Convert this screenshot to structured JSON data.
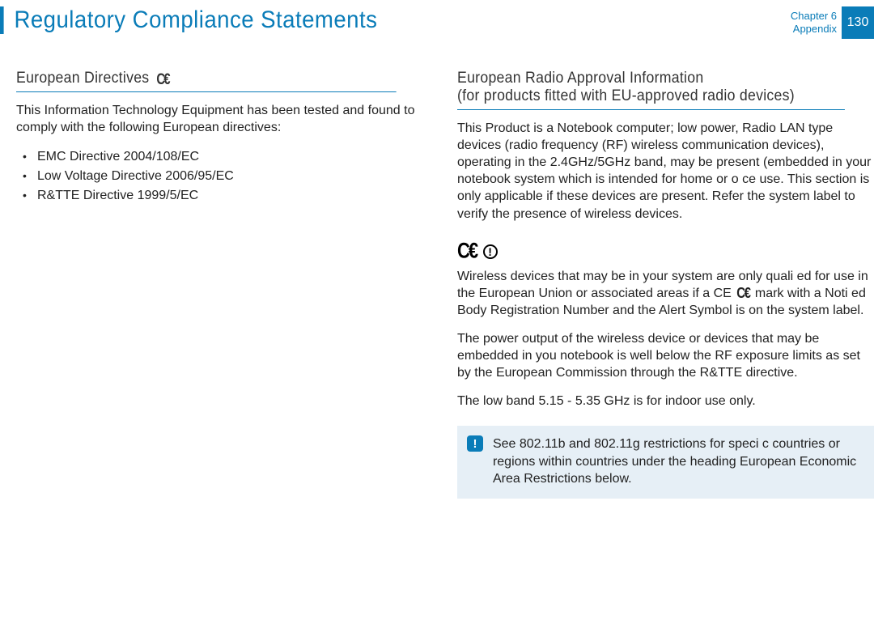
{
  "header": {
    "title": "Regulatory Compliance Statements",
    "chapter_label": "Chapter 6",
    "section_label": "Appendix",
    "page_number": "130"
  },
  "left": {
    "heading": "European Directives",
    "intro": "This Information Technology Equipment has been tested and found to comply with the following European directives:",
    "directives": [
      "EMC Directive 2004/108/EC",
      "Low Voltage Directive 2006/95/EC",
      "R&TTE Directive 1999/5/EC"
    ]
  },
  "right": {
    "heading_line1": "European Radio Approval Information",
    "heading_line2": "(for products ﬁtted with EU-approved radio devices)",
    "para1": "This Product is a Notebook computer; low power, Radio LAN type devices (radio frequency (RF) wireless communication devices), operating in the 2.4GHz/5GHz band, may be present (embedded in your notebook system which is intended for home or o ce use. This section is only applicable if these devices are present. Refer the system label to verify the presence of wireless devices.",
    "para2a": "Wireless devices that may be in your system are only quali ed for use in the European Union or associated areas if a CE ",
    "para2b": " mark with a Noti ed Body Registration Number and the Alert Symbol is on the system label.",
    "para3": "The power output of the wireless device or devices that may be embedded in you notebook is well below the RF exposure limits as set by the European Commission through the R&TTE directive.",
    "para4": "The low band 5.15 - 5.35 GHz is for indoor use only.",
    "note": "See 802.11b and 802.11g restrictions for speci c countries or regions within countries under the heading  European Economic Area Restrictions  below."
  }
}
